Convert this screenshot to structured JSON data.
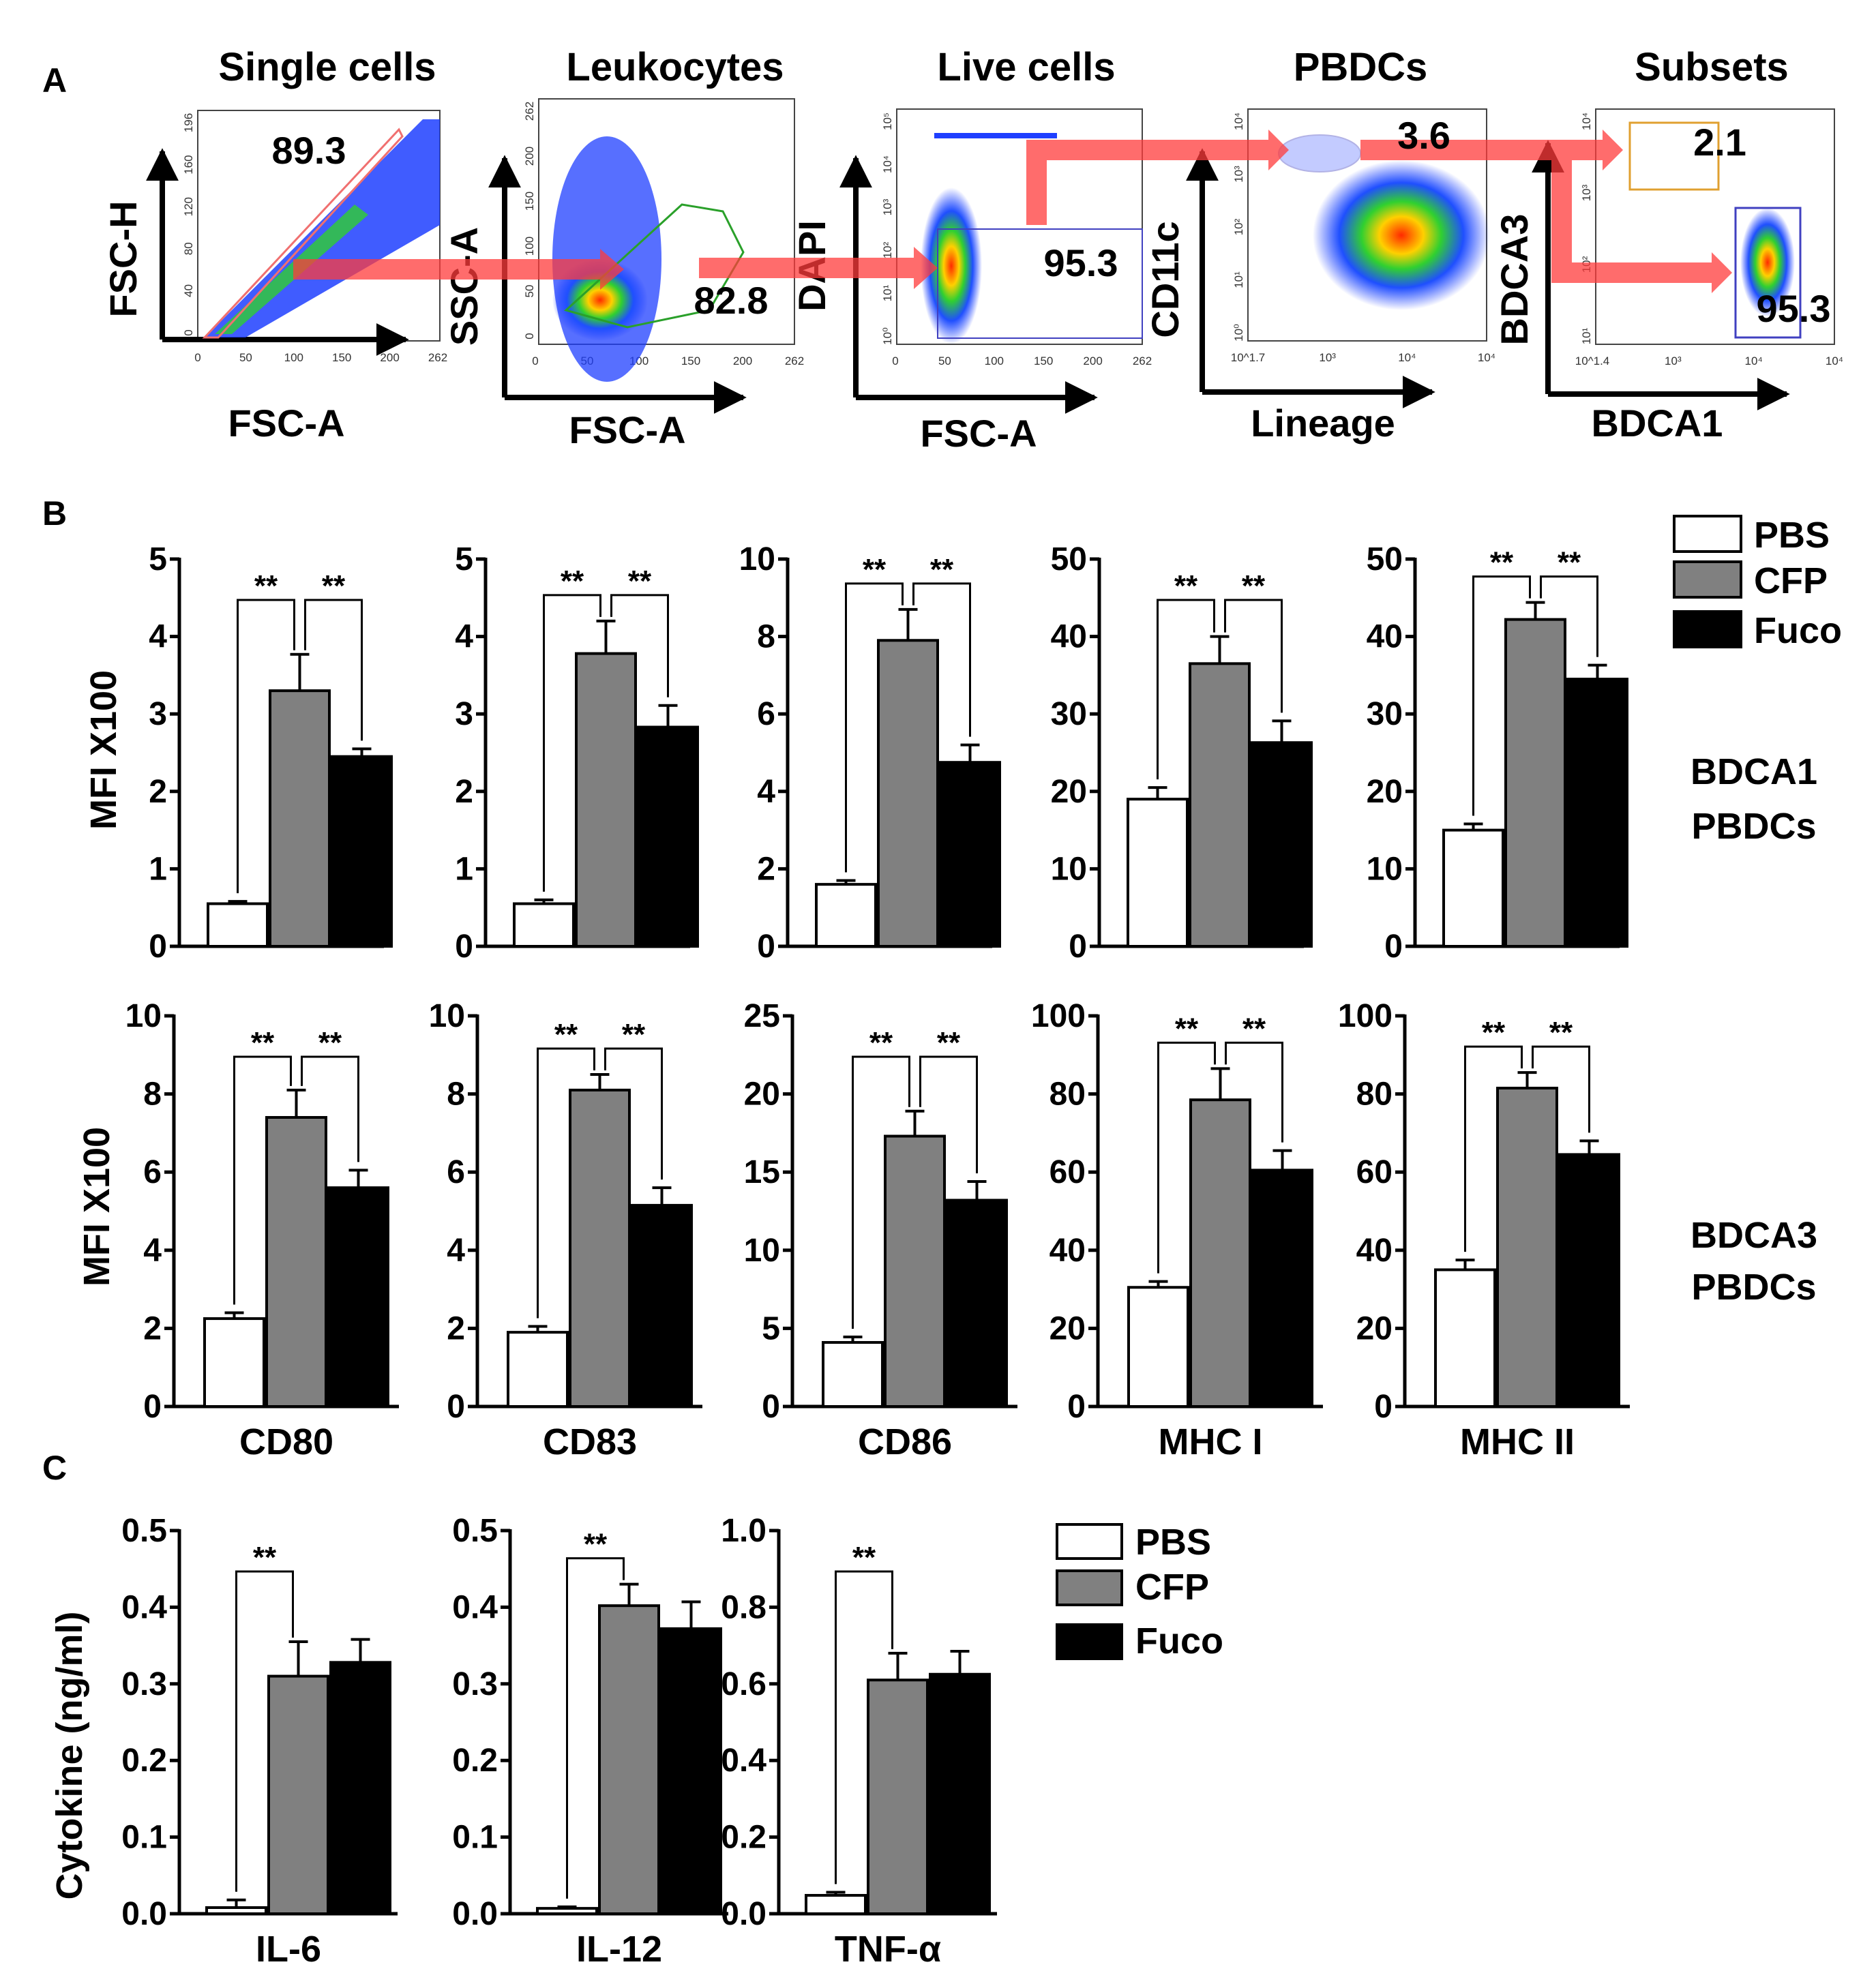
{
  "panels": {
    "a": {
      "label": "A",
      "plots": [
        {
          "title": "Single cells",
          "xlabel": "FSC-A",
          "ylabel": "FSC-H",
          "gate_value": "89.3",
          "xticks": [
            "0",
            "50",
            "100",
            "150",
            "200",
            "262"
          ],
          "yticks": [
            "0",
            "40",
            "80",
            "120",
            "160",
            "196"
          ]
        },
        {
          "title": "Leukocytes",
          "xlabel": "FSC-A",
          "ylabel": "SSC-A",
          "gate_value": "82.8",
          "xticks": [
            "0",
            "50",
            "100",
            "150",
            "200",
            "262"
          ],
          "yticks": [
            "0",
            "50",
            "100",
            "150",
            "200",
            "262"
          ]
        },
        {
          "title": "Live cells",
          "xlabel": "FSC-A",
          "ylabel": "DAPI",
          "gate_value": "95.3",
          "xticks": [
            "0",
            "50",
            "100",
            "150",
            "200",
            "262"
          ],
          "yticks": [
            "10⁰",
            "10¹",
            "10²",
            "10³",
            "10⁴",
            "10⁵"
          ]
        },
        {
          "title": "PBDCs",
          "xlabel": "Lineage",
          "ylabel": "CD11c",
          "gate_value": "3.6",
          "xticks": [
            "10^1.7",
            "10³",
            "10⁴",
            "10⁴"
          ],
          "yticks": [
            "10⁰",
            "10¹",
            "10²",
            "10³",
            "10⁴"
          ]
        },
        {
          "title": "Subsets",
          "xlabel": "BDCA1",
          "ylabel": "BDCA3",
          "gate_values": [
            "2.1",
            "95.3"
          ],
          "xticks": [
            "10^1.4",
            "10³",
            "10⁴",
            "10⁴"
          ],
          "yticks": [
            "10¹",
            "10²",
            "10³",
            "10⁴"
          ]
        }
      ]
    },
    "b": {
      "label": "B",
      "legend": [
        "PBS",
        "CFP",
        "Fuco"
      ],
      "ylabel": "MFI X100",
      "row_labels": [
        [
          "BDCA1",
          "PBDCs"
        ],
        [
          "BDCA3",
          "PBDCs"
        ]
      ]
    },
    "c": {
      "label": "C",
      "legend": [
        "PBS",
        "CFP",
        "Fuco"
      ],
      "ylabel": "Cytokine (ng/ml)"
    }
  },
  "colors": {
    "pbs": "#ffffff",
    "cfp": "#808080",
    "fuco": "#000000"
  },
  "chart_data": [
    {
      "type": "bar",
      "panel": "B",
      "row": "BDCA1 PBDCs",
      "xlabel": "",
      "categories": [
        "PBS",
        "CFP",
        "Fuco"
      ],
      "values": [
        0.55,
        3.3,
        2.45
      ],
      "errors": [
        0.03,
        0.47,
        0.1
      ],
      "ylim": [
        0,
        5
      ],
      "yticks": [
        "0",
        "1",
        "2",
        "3",
        "4",
        "5"
      ],
      "significance": [
        "**",
        "**"
      ]
    },
    {
      "type": "bar",
      "panel": "B",
      "row": "BDCA1 PBDCs",
      "xlabel": "",
      "categories": [
        "PBS",
        "CFP",
        "Fuco"
      ],
      "values": [
        0.55,
        3.78,
        2.83
      ],
      "errors": [
        0.05,
        0.42,
        0.28
      ],
      "ylim": [
        0,
        5
      ],
      "yticks": [
        "0",
        "1",
        "2",
        "3",
        "4",
        "5"
      ],
      "significance": [
        "**",
        "**"
      ]
    },
    {
      "type": "bar",
      "panel": "B",
      "row": "BDCA1 PBDCs",
      "xlabel": "",
      "categories": [
        "PBS",
        "CFP",
        "Fuco"
      ],
      "values": [
        1.6,
        7.9,
        4.75
      ],
      "errors": [
        0.1,
        0.8,
        0.45
      ],
      "ylim": [
        0,
        10
      ],
      "yticks": [
        "0",
        "2",
        "4",
        "6",
        "8",
        "10"
      ],
      "significance": [
        "**",
        "**"
      ]
    },
    {
      "type": "bar",
      "panel": "B",
      "row": "BDCA1 PBDCs",
      "xlabel": "",
      "categories": [
        "PBS",
        "CFP",
        "Fuco"
      ],
      "values": [
        19,
        36.5,
        26.3
      ],
      "errors": [
        1.5,
        3.5,
        2.8
      ],
      "ylim": [
        0,
        50
      ],
      "yticks": [
        "0",
        "10",
        "20",
        "30",
        "40",
        "50"
      ],
      "significance": [
        "**",
        "**"
      ]
    },
    {
      "type": "bar",
      "panel": "B",
      "row": "BDCA1 PBDCs",
      "xlabel": "",
      "categories": [
        "PBS",
        "CFP",
        "Fuco"
      ],
      "values": [
        15,
        42.2,
        34.5
      ],
      "errors": [
        0.8,
        2.2,
        1.8
      ],
      "ylim": [
        0,
        50
      ],
      "yticks": [
        "0",
        "10",
        "20",
        "30",
        "40",
        "50"
      ],
      "significance": [
        "**",
        "**"
      ]
    },
    {
      "type": "bar",
      "panel": "B",
      "row": "BDCA3 PBDCs",
      "xlabel": "CD80",
      "categories": [
        "PBS",
        "CFP",
        "Fuco"
      ],
      "values": [
        2.25,
        7.4,
        5.6
      ],
      "errors": [
        0.15,
        0.7,
        0.45
      ],
      "ylim": [
        0,
        10
      ],
      "yticks": [
        "0",
        "2",
        "4",
        "6",
        "8",
        "10"
      ],
      "significance": [
        "**",
        "**"
      ]
    },
    {
      "type": "bar",
      "panel": "B",
      "row": "BDCA3 PBDCs",
      "xlabel": "CD83",
      "categories": [
        "PBS",
        "CFP",
        "Fuco"
      ],
      "values": [
        1.9,
        8.1,
        5.15
      ],
      "errors": [
        0.15,
        0.4,
        0.45
      ],
      "ylim": [
        0,
        10
      ],
      "yticks": [
        "0",
        "2",
        "4",
        "6",
        "8",
        "10"
      ],
      "significance": [
        "**",
        "**"
      ]
    },
    {
      "type": "bar",
      "panel": "B",
      "row": "BDCA3 PBDCs",
      "xlabel": "CD86",
      "categories": [
        "PBS",
        "CFP",
        "Fuco"
      ],
      "values": [
        4.1,
        17.3,
        13.2
      ],
      "errors": [
        0.35,
        1.6,
        1.2
      ],
      "ylim": [
        0,
        25
      ],
      "yticks": [
        "0",
        "5",
        "10",
        "15",
        "20",
        "25"
      ],
      "significance": [
        "**",
        "**"
      ]
    },
    {
      "type": "bar",
      "panel": "B",
      "row": "BDCA3 PBDCs",
      "xlabel": "MHC I",
      "categories": [
        "PBS",
        "CFP",
        "Fuco"
      ],
      "values": [
        30.5,
        78.5,
        60.5
      ],
      "errors": [
        1.5,
        8,
        5
      ],
      "ylim": [
        0,
        100
      ],
      "yticks": [
        "0",
        "20",
        "40",
        "60",
        "80",
        "100"
      ],
      "significance": [
        "**",
        "**"
      ]
    },
    {
      "type": "bar",
      "panel": "B",
      "row": "BDCA3 PBDCs",
      "xlabel": "MHC II",
      "categories": [
        "PBS",
        "CFP",
        "Fuco"
      ],
      "values": [
        35,
        81.5,
        64.5
      ],
      "errors": [
        2.5,
        4,
        3.5
      ],
      "ylim": [
        0,
        100
      ],
      "yticks": [
        "0",
        "20",
        "40",
        "60",
        "80",
        "100"
      ],
      "significance": [
        "**",
        "**"
      ]
    },
    {
      "type": "bar",
      "panel": "C",
      "xlabel": "IL-6",
      "categories": [
        "PBS",
        "CFP",
        "Fuco"
      ],
      "values": [
        0.008,
        0.31,
        0.328
      ],
      "errors": [
        0.01,
        0.045,
        0.03
      ],
      "ylim": [
        0,
        0.5
      ],
      "yticks": [
        "0.0",
        "0.1",
        "0.2",
        "0.3",
        "0.4",
        "0.5"
      ],
      "significance": [
        "**"
      ]
    },
    {
      "type": "bar",
      "panel": "C",
      "xlabel": "IL-12",
      "categories": [
        "PBS",
        "CFP",
        "Fuco"
      ],
      "values": [
        0.007,
        0.402,
        0.372
      ],
      "errors": [
        0.002,
        0.028,
        0.035
      ],
      "ylim": [
        0,
        0.5
      ],
      "yticks": [
        "0.0",
        "0.1",
        "0.2",
        "0.3",
        "0.4",
        "0.5"
      ],
      "significance": [
        "**"
      ]
    },
    {
      "type": "bar",
      "panel": "C",
      "xlabel": "TNF-α",
      "categories": [
        "PBS",
        "CFP",
        "Fuco"
      ],
      "values": [
        0.048,
        0.61,
        0.625
      ],
      "errors": [
        0.008,
        0.07,
        0.06
      ],
      "ylim": [
        0,
        1.0
      ],
      "yticks": [
        "0.0",
        "0.2",
        "0.4",
        "0.6",
        "0.8",
        "1.0"
      ],
      "significance": [
        "**"
      ]
    }
  ]
}
